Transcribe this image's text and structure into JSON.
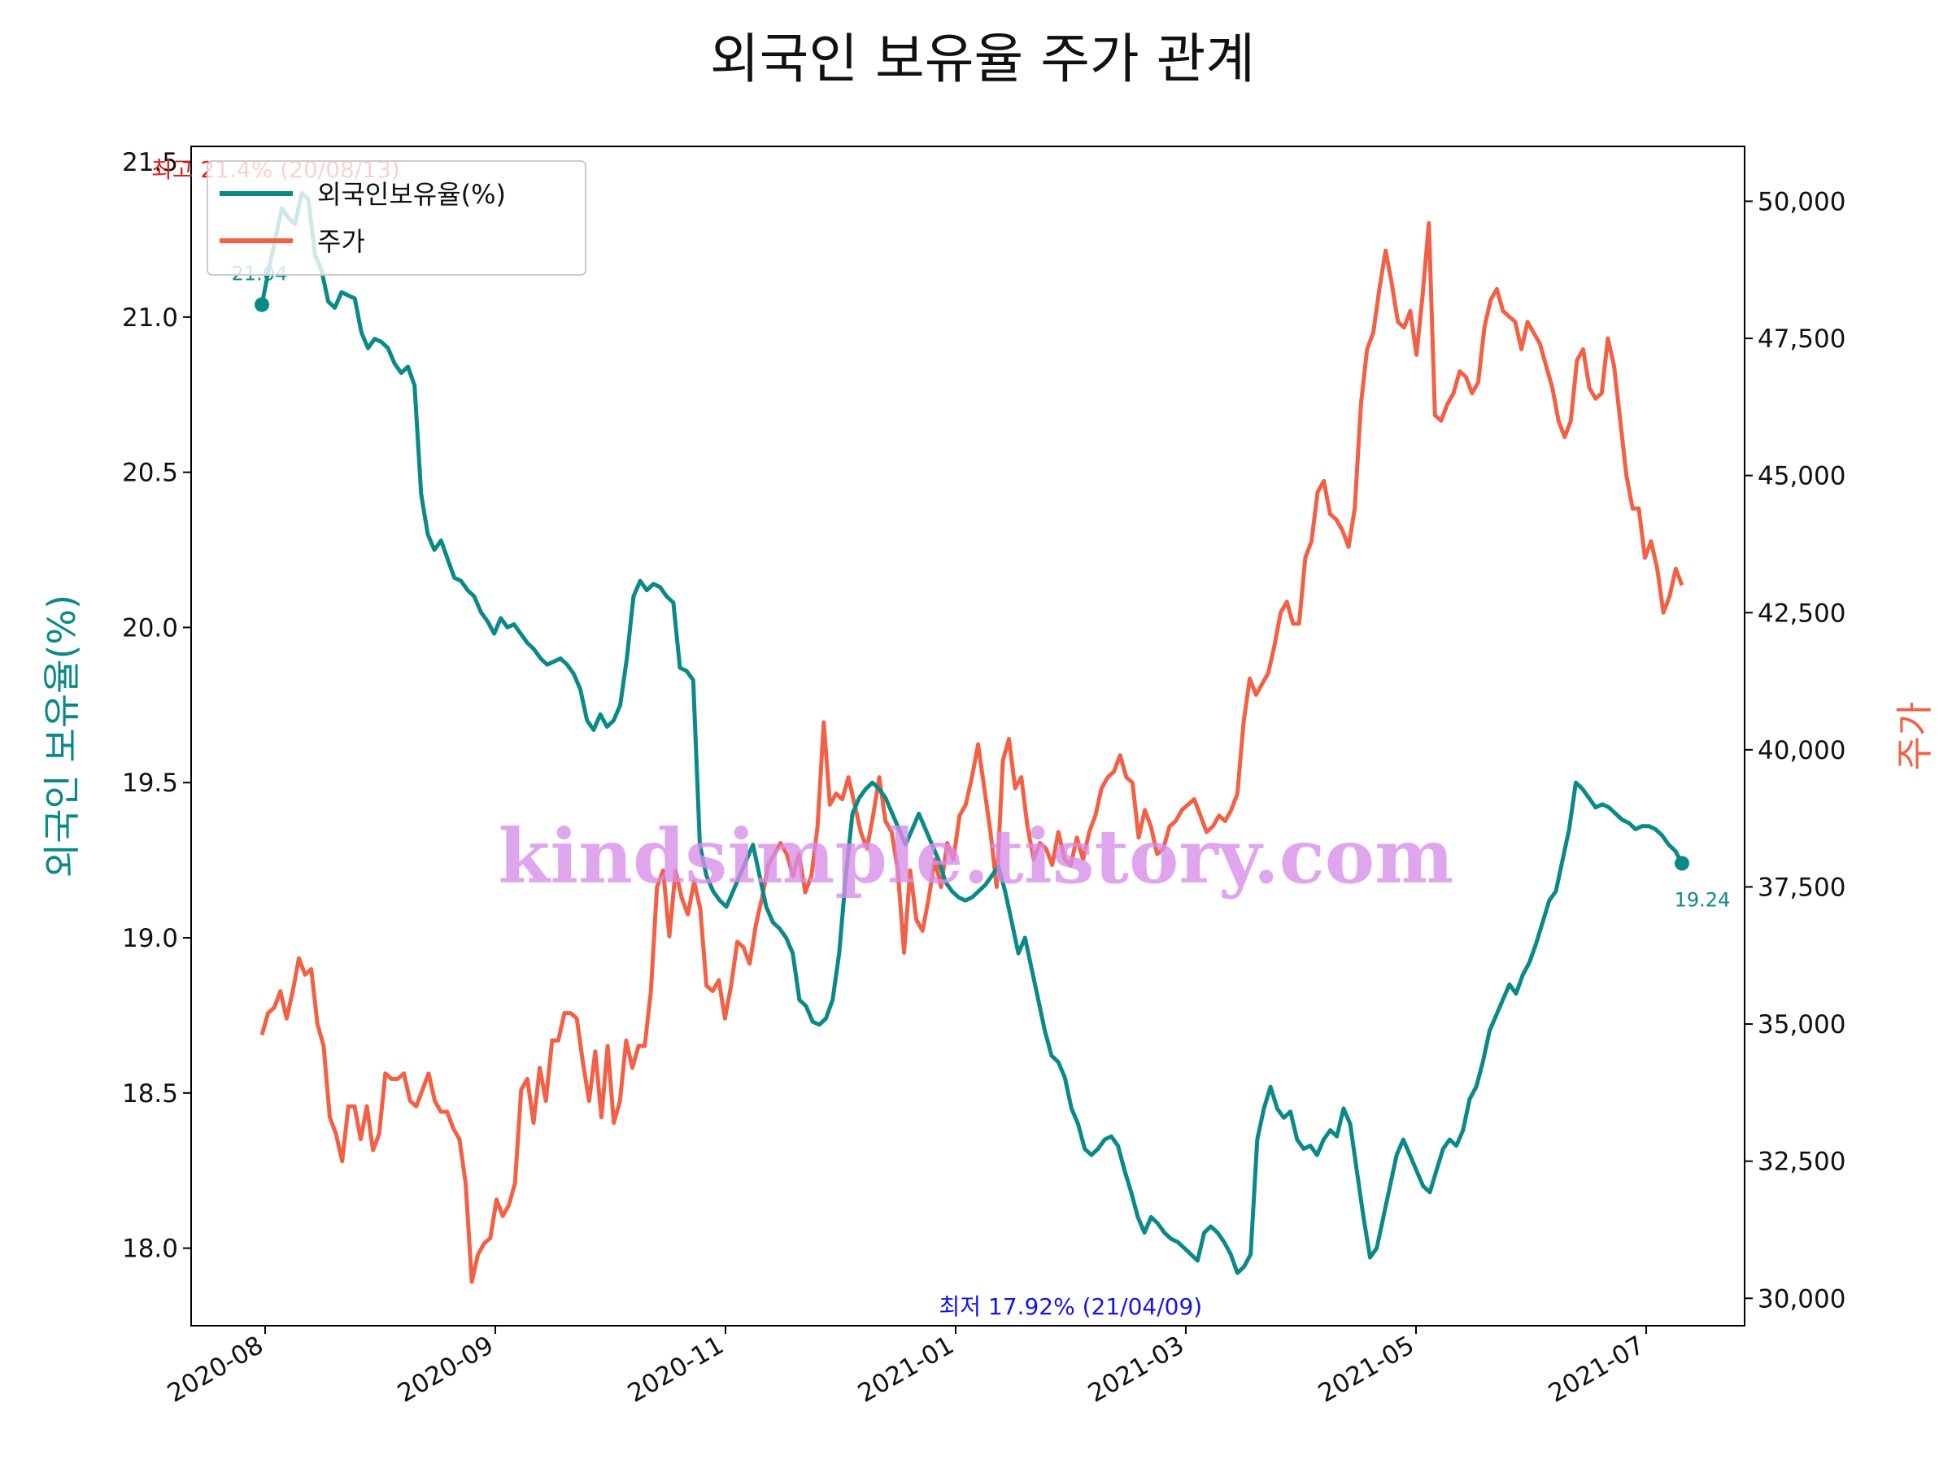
{
  "chart_data": {
    "type": "line",
    "title": "외국인 보유율 주가 관계",
    "ylabel_left": "외국인 보유율(%)",
    "ylabel_right": "주가",
    "watermark": "kindsimple.tistory.com",
    "colors": {
      "holding": "#0a8a87",
      "price": "#f26046",
      "max": "#e0201a",
      "min": "#1414f0"
    },
    "x_ticks": [
      "2020-08",
      "2020-09",
      "2020-11",
      "2021-01",
      "2021-03",
      "2021-05",
      "2021-07"
    ],
    "y_left_ticks": [
      "18.0",
      "18.5",
      "19.0",
      "19.5",
      "20.0",
      "20.5",
      "21.0",
      "21.5"
    ],
    "y_right_ticks": [
      "30,000",
      "32,500",
      "35,000",
      "37,500",
      "40,000",
      "42,500",
      "45,000",
      "47,500",
      "50,000"
    ],
    "ylim_left": [
      17.75,
      21.55
    ],
    "ylim_right": [
      29500,
      51000
    ],
    "legend": {
      "placement": "upper-left",
      "entries": [
        "외국인보유율(%)",
        "주가"
      ]
    },
    "annotations": {
      "max_label": "최고 21.4% (20/08/13)",
      "min_label": "최저 17.92% (21/04/09)",
      "start_label": "21.04",
      "end_label": "19.24"
    },
    "series": [
      {
        "name": "외국인보유율(%)",
        "axis": "left",
        "x_range": [
          "2020-07-31",
          "2021-07-12"
        ],
        "values": [
          21.04,
          21.15,
          21.25,
          21.35,
          21.32,
          21.3,
          21.4,
          21.38,
          21.2,
          21.15,
          21.05,
          21.03,
          21.08,
          21.07,
          21.06,
          20.95,
          20.9,
          20.93,
          20.92,
          20.9,
          20.85,
          20.82,
          20.84,
          20.78,
          20.43,
          20.3,
          20.25,
          20.28,
          20.22,
          20.16,
          20.15,
          20.12,
          20.1,
          20.05,
          20.02,
          19.98,
          20.03,
          20.0,
          20.01,
          19.98,
          19.95,
          19.93,
          19.9,
          19.88,
          19.89,
          19.9,
          19.88,
          19.85,
          19.8,
          19.7,
          19.67,
          19.72,
          19.68,
          19.7,
          19.75,
          19.9,
          20.1,
          20.15,
          20.12,
          20.14,
          20.13,
          20.1,
          20.08,
          19.87,
          19.86,
          19.83,
          19.3,
          19.2,
          19.15,
          19.12,
          19.1,
          19.15,
          19.2,
          19.25,
          19.3,
          19.2,
          19.1,
          19.05,
          19.03,
          19.0,
          18.95,
          18.8,
          18.78,
          18.73,
          18.72,
          18.74,
          18.8,
          18.95,
          19.2,
          19.4,
          19.45,
          19.48,
          19.5,
          19.48,
          19.45,
          19.4,
          19.35,
          19.3,
          19.35,
          19.4,
          19.35,
          19.3,
          19.25,
          19.18,
          19.15,
          19.13,
          19.12,
          19.13,
          19.15,
          19.17,
          19.2,
          19.23,
          19.15,
          19.05,
          18.95,
          19.0,
          18.9,
          18.8,
          18.7,
          18.62,
          18.6,
          18.55,
          18.45,
          18.4,
          18.32,
          18.3,
          18.32,
          18.35,
          18.36,
          18.33,
          18.25,
          18.18,
          18.1,
          18.05,
          18.1,
          18.08,
          18.05,
          18.03,
          18.02,
          18.0,
          17.98,
          17.96,
          18.05,
          18.07,
          18.05,
          18.02,
          17.98,
          17.92,
          17.94,
          17.98,
          18.35,
          18.45,
          18.52,
          18.45,
          18.42,
          18.44,
          18.35,
          18.32,
          18.33,
          18.3,
          18.35,
          18.38,
          18.36,
          18.45,
          18.4,
          18.25,
          18.1,
          17.97,
          18.0,
          18.1,
          18.2,
          18.3,
          18.35,
          18.3,
          18.25,
          18.2,
          18.18,
          18.25,
          18.32,
          18.35,
          18.33,
          18.38,
          18.48,
          18.52,
          18.6,
          18.7,
          18.75,
          18.8,
          18.85,
          18.82,
          18.88,
          18.92,
          18.98,
          19.05,
          19.12,
          19.15,
          19.25,
          19.35,
          19.5,
          19.48,
          19.45,
          19.42,
          19.43,
          19.42,
          19.4,
          19.38,
          19.37,
          19.35,
          19.36,
          19.36,
          19.35,
          19.33,
          19.3,
          19.28,
          19.24
        ]
      },
      {
        "name": "주가",
        "axis": "right",
        "x_range": [
          "2020-07-31",
          "2021-07-12"
        ],
        "values": [
          34800,
          35200,
          35300,
          35600,
          35100,
          35600,
          36200,
          35900,
          36000,
          35000,
          34600,
          33300,
          33000,
          32500,
          33500,
          33500,
          32900,
          33500,
          32700,
          33000,
          34100,
          34000,
          34000,
          34100,
          33600,
          33500,
          33800,
          34100,
          33600,
          33400,
          33400,
          33100,
          32900,
          32100,
          30300,
          30800,
          31000,
          31100,
          31800,
          31500,
          31700,
          32100,
          33800,
          34000,
          33200,
          34200,
          33600,
          34700,
          34700,
          35200,
          35200,
          35100,
          34300,
          33600,
          34500,
          33300,
          34600,
          33200,
          33600,
          34700,
          34200,
          34600,
          34600,
          35600,
          37500,
          37800,
          36600,
          37800,
          37300,
          37000,
          37600,
          37100,
          35700,
          35600,
          35800,
          35100,
          35700,
          36500,
          36400,
          36100,
          36800,
          37300,
          37900,
          38100,
          38300,
          38100,
          37700,
          38100,
          37400,
          37700,
          38600,
          40500,
          39000,
          39200,
          39100,
          39500,
          39000,
          38500,
          38200,
          38800,
          39500,
          38700,
          38500,
          37800,
          36300,
          37800,
          36900,
          36700,
          37300,
          38000,
          37500,
          38300,
          38000,
          38800,
          39000,
          39500,
          40100,
          39300,
          38500,
          37500,
          39800,
          40200,
          39300,
          39500,
          38600,
          38000,
          38300,
          38200,
          37900,
          38500,
          38000,
          37900,
          38400,
          38000,
          38500,
          38800,
          39300,
          39500,
          39600,
          39900,
          39500,
          39400,
          38400,
          38900,
          38600,
          38100,
          38200,
          38600,
          38700,
          38900,
          39000,
          39100,
          38800,
          38500,
          38600,
          38800,
          38700,
          38900,
          39200,
          40500,
          41300,
          41000,
          41200,
          41400,
          41900,
          42500,
          42700,
          42300,
          42300,
          43500,
          43800,
          44700,
          44900,
          44300,
          44200,
          44000,
          43700,
          44400,
          46300,
          47300,
          47600,
          48400,
          49100,
          48500,
          47800,
          47700,
          48000,
          47200,
          48300,
          49600,
          46100,
          46000,
          46300,
          46500,
          46900,
          46800,
          46500,
          46700,
          47700,
          48200,
          48400,
          48000,
          47900,
          47800,
          47300,
          47800,
          47600,
          47400,
          47000,
          46600,
          46000,
          45700,
          46000,
          47100,
          47300,
          46600,
          46400,
          46500,
          47500,
          47000,
          46000,
          45000,
          44400,
          44400,
          43500,
          43800,
          43300,
          42500,
          42800,
          43300,
          43000
        ]
      }
    ]
  }
}
